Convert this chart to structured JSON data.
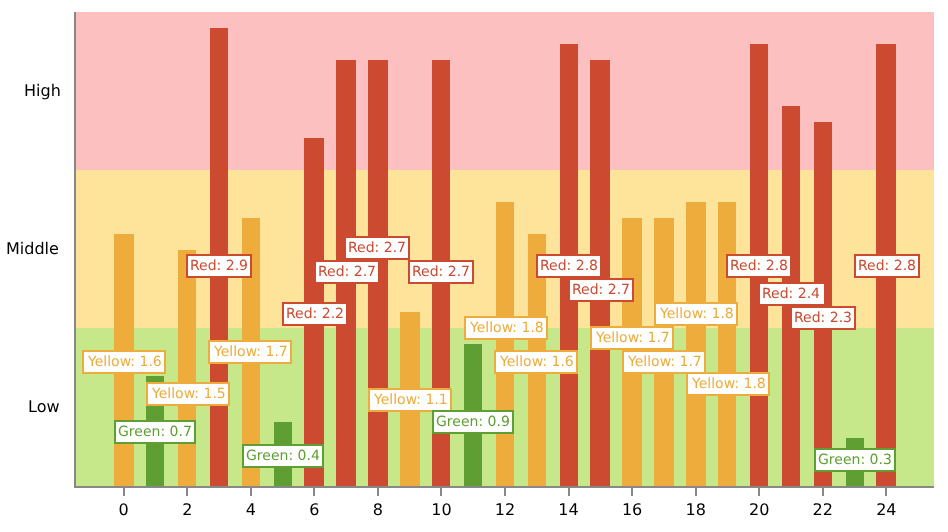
{
  "chart_data": {
    "type": "bar",
    "x": [
      0,
      1,
      2,
      3,
      4,
      5,
      6,
      7,
      8,
      9,
      10,
      11,
      12,
      13,
      14,
      15,
      16,
      17,
      18,
      19,
      20,
      21,
      22,
      23,
      24
    ],
    "series": [
      {
        "color": "#5e9e32",
        "values": [
          null,
          0.7,
          null,
          null,
          null,
          0.4,
          null,
          null,
          null,
          null,
          null,
          0.9,
          null,
          null,
          null,
          null,
          null,
          null,
          null,
          null,
          null,
          null,
          null,
          0.3,
          null
        ],
        "value_labels": [
          null,
          "Green: 0.7",
          null,
          null,
          null,
          "Green: 0.4",
          null,
          null,
          null,
          null,
          null,
          "Green: 0.9",
          null,
          null,
          null,
          null,
          null,
          null,
          null,
          null,
          null,
          null,
          null,
          "Green: 0.3",
          null
        ]
      },
      {
        "color": "#eeac3c",
        "values": [
          1.6,
          null,
          1.5,
          null,
          1.7,
          null,
          null,
          null,
          null,
          1.1,
          null,
          null,
          1.8,
          1.6,
          null,
          null,
          1.7,
          1.7,
          1.8,
          1.8,
          null,
          null,
          null,
          null,
          null
        ],
        "value_labels": [
          "Yellow: 1.6",
          null,
          "Yellow: 1.5",
          null,
          "Yellow: 1.7",
          null,
          null,
          null,
          null,
          "Yellow: 1.1",
          null,
          null,
          "Yellow: 1.8",
          "Yellow: 1.6",
          null,
          null,
          "Yellow: 1.7",
          "Yellow: 1.7",
          "Yellow: 1.8",
          "Yellow: 1.8",
          null,
          null,
          null,
          null,
          null
        ]
      },
      {
        "color": "#cc4a30",
        "values": [
          null,
          null,
          null,
          2.9,
          null,
          null,
          2.2,
          2.7,
          2.7,
          null,
          2.7,
          null,
          null,
          null,
          2.8,
          2.7,
          null,
          null,
          null,
          null,
          2.8,
          2.4,
          2.3,
          null,
          2.8
        ],
        "value_labels": [
          null,
          null,
          null,
          "Red: 2.9",
          null,
          null,
          "Red: 2.2",
          "Red: 2.7",
          "Red: 2.7",
          null,
          "Red: 2.7",
          null,
          null,
          null,
          "Red: 2.8",
          "Red: 2.7",
          null,
          null,
          null,
          null,
          "Red: 2.8",
          "Red: 2.4",
          "Red: 2.3",
          null,
          "Red: 2.8"
        ]
      }
    ],
    "xlim": [
      -1.5,
      25.5
    ],
    "xticks": [
      0,
      2,
      4,
      6,
      8,
      10,
      12,
      14,
      16,
      18,
      20,
      22,
      24
    ],
    "bands": [
      {
        "axis": "y",
        "from": 0,
        "to": 1,
        "color": "#c6e88a",
        "label": "Low"
      },
      {
        "axis": "y",
        "from": 1,
        "to": 2,
        "color": "#fde49a",
        "label": "Middle"
      },
      {
        "axis": "y",
        "from": 2,
        "to": 3,
        "color": "#fcc0c0",
        "label": "High"
      }
    ],
    "legend": false,
    "grid": false
  }
}
